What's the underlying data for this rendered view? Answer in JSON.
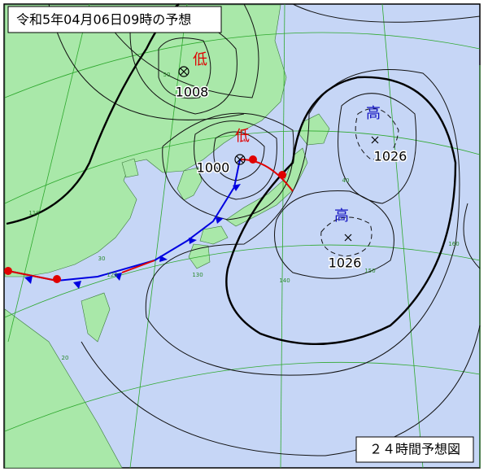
{
  "header": {
    "title": "令和5年04月06日09時の予想"
  },
  "footer": {
    "label": "２４時間予想図"
  },
  "pressure_systems": [
    {
      "kind": "低",
      "pressure": "1008"
    },
    {
      "kind": "低",
      "pressure": "1000"
    },
    {
      "kind": "高",
      "pressure": "1026"
    },
    {
      "kind": "高",
      "pressure": "1026"
    }
  ],
  "grid_labels": [
    "50",
    "40",
    "30",
    "20",
    "110",
    "120",
    "130",
    "140",
    "150",
    "160"
  ]
}
